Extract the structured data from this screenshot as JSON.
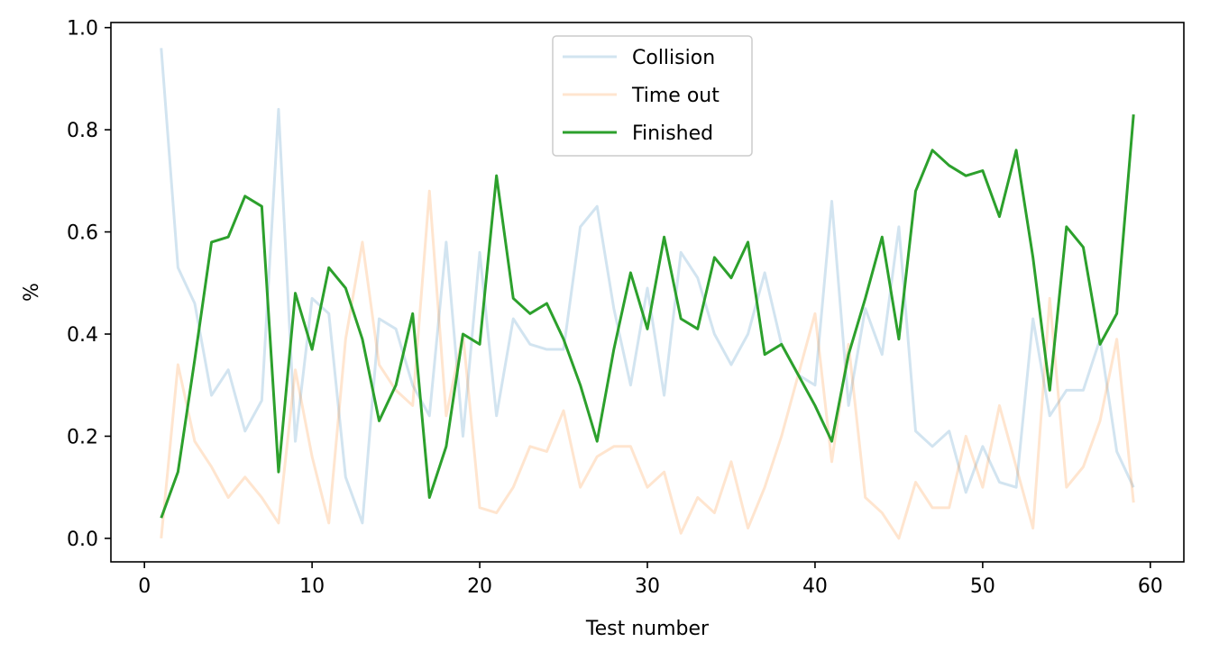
{
  "chart_data": {
    "type": "line",
    "xlabel": "Test number",
    "ylabel": "%",
    "xlim": [
      -2,
      62
    ],
    "ylim": [
      -0.046,
      1.01
    ],
    "xticks": [
      0,
      10,
      20,
      30,
      40,
      50,
      60
    ],
    "yticks": [
      0.0,
      0.2,
      0.4,
      0.6,
      0.8,
      1.0
    ],
    "xtick_labels": [
      "0",
      "10",
      "20",
      "30",
      "40",
      "50",
      "60"
    ],
    "ytick_labels": [
      "0.0",
      "0.2",
      "0.4",
      "0.6",
      "0.8",
      "1.0"
    ],
    "grid": false,
    "legend_position": "top-center",
    "x": [
      1,
      2,
      3,
      4,
      5,
      6,
      7,
      8,
      9,
      10,
      11,
      12,
      13,
      14,
      15,
      16,
      17,
      18,
      19,
      20,
      21,
      22,
      23,
      24,
      25,
      26,
      27,
      28,
      29,
      30,
      31,
      32,
      33,
      34,
      35,
      36,
      37,
      38,
      39,
      40,
      41,
      42,
      43,
      44,
      45,
      46,
      47,
      48,
      49,
      50,
      51,
      52,
      53,
      54,
      55,
      56,
      57,
      58,
      59
    ],
    "series": [
      {
        "name": "Collision",
        "color": "#1f77b4",
        "opacity": 0.2,
        "values": [
          0.96,
          0.53,
          0.46,
          0.28,
          0.33,
          0.21,
          0.27,
          0.84,
          0.19,
          0.47,
          0.44,
          0.12,
          0.03,
          0.43,
          0.41,
          0.3,
          0.24,
          0.58,
          0.2,
          0.56,
          0.24,
          0.43,
          0.38,
          0.37,
          0.37,
          0.61,
          0.65,
          0.45,
          0.3,
          0.49,
          0.28,
          0.56,
          0.51,
          0.4,
          0.34,
          0.4,
          0.52,
          0.38,
          0.32,
          0.3,
          0.66,
          0.26,
          0.45,
          0.36,
          0.61,
          0.21,
          0.18,
          0.21,
          0.09,
          0.18,
          0.11,
          0.1,
          0.43,
          0.24,
          0.29,
          0.29,
          0.39,
          0.17,
          0.1
        ]
      },
      {
        "name": "Time out",
        "color": "#ff7f0e",
        "opacity": 0.2,
        "values": [
          0.0,
          0.34,
          0.19,
          0.14,
          0.08,
          0.12,
          0.08,
          0.03,
          0.33,
          0.16,
          0.03,
          0.39,
          0.58,
          0.34,
          0.29,
          0.26,
          0.68,
          0.24,
          0.4,
          0.06,
          0.05,
          0.1,
          0.18,
          0.17,
          0.25,
          0.1,
          0.16,
          0.18,
          0.18,
          0.1,
          0.13,
          0.01,
          0.08,
          0.05,
          0.15,
          0.02,
          0.1,
          0.2,
          0.32,
          0.44,
          0.15,
          0.38,
          0.08,
          0.05,
          0.0,
          0.11,
          0.06,
          0.06,
          0.2,
          0.1,
          0.26,
          0.14,
          0.02,
          0.47,
          0.1,
          0.14,
          0.23,
          0.39,
          0.07
        ]
      },
      {
        "name": "Finished",
        "color": "#2ca02c",
        "opacity": 1.0,
        "values": [
          0.04,
          0.13,
          0.35,
          0.58,
          0.59,
          0.67,
          0.65,
          0.13,
          0.48,
          0.37,
          0.53,
          0.49,
          0.39,
          0.23,
          0.3,
          0.44,
          0.08,
          0.18,
          0.4,
          0.38,
          0.71,
          0.47,
          0.44,
          0.46,
          0.39,
          0.3,
          0.19,
          0.37,
          0.52,
          0.41,
          0.59,
          0.43,
          0.41,
          0.55,
          0.51,
          0.58,
          0.36,
          0.38,
          0.32,
          0.26,
          0.19,
          0.36,
          0.47,
          0.59,
          0.39,
          0.68,
          0.76,
          0.73,
          0.71,
          0.72,
          0.63,
          0.76,
          0.55,
          0.29,
          0.61,
          0.57,
          0.38,
          0.44,
          0.83
        ]
      }
    ]
  }
}
